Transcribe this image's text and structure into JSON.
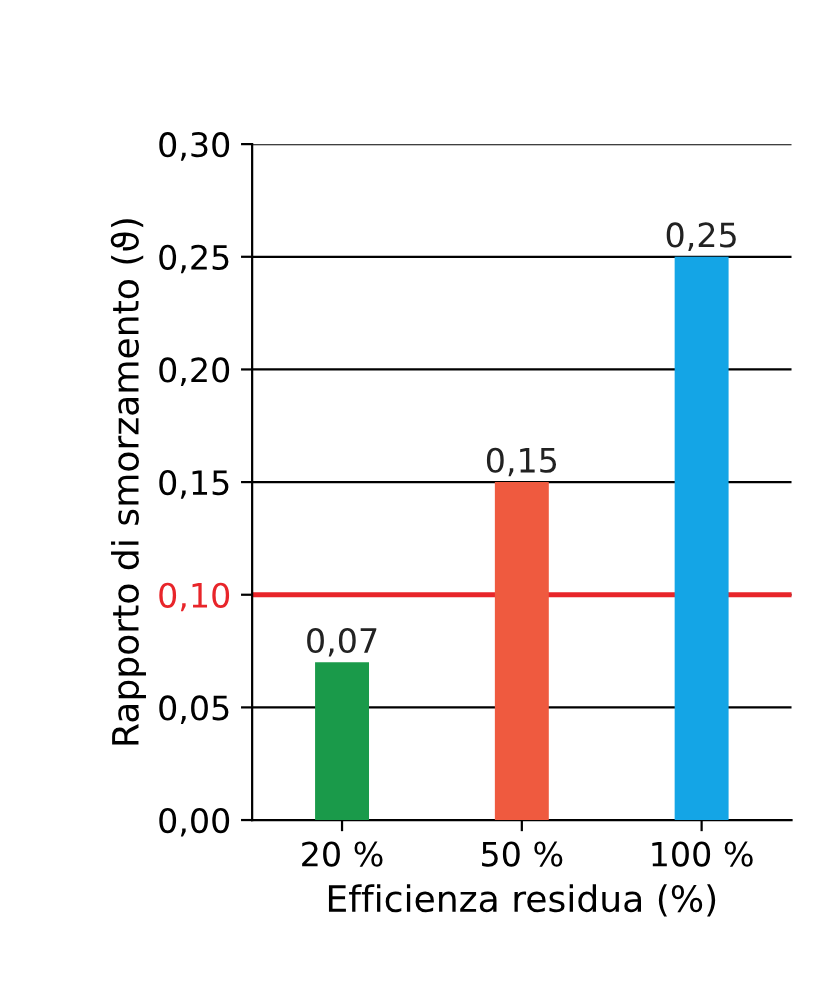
{
  "chart_data": {
    "type": "bar",
    "xlabel": "Efficienza residua (%)",
    "ylabel": "Rapporto di smorzamento (ϑ)",
    "categories": [
      "20 %",
      "50 %",
      "100 %"
    ],
    "values": [
      0.07,
      0.15,
      0.25
    ],
    "colors": [
      "#1a9a4a",
      "#ef5a3f",
      "#14a5e6"
    ],
    "value_labels": [
      "0,07",
      "0,15",
      "0,25"
    ],
    "ylim": [
      0,
      0.3
    ],
    "yticks": [
      {
        "value": 0,
        "label": "0,00"
      },
      {
        "value": 0.05,
        "label": "0,05"
      },
      {
        "value": 0.1,
        "label": "0,10"
      },
      {
        "value": 0.15,
        "label": "0,15"
      },
      {
        "value": 0.2,
        "label": "0,20"
      },
      {
        "value": 0.25,
        "label": "0,25"
      },
      {
        "value": 0.3,
        "label": "0,30"
      }
    ],
    "ref_lines": [
      {
        "axis": "y",
        "value": 0.1,
        "color": "#e8252a"
      }
    ],
    "grid": "y",
    "legend": false
  }
}
